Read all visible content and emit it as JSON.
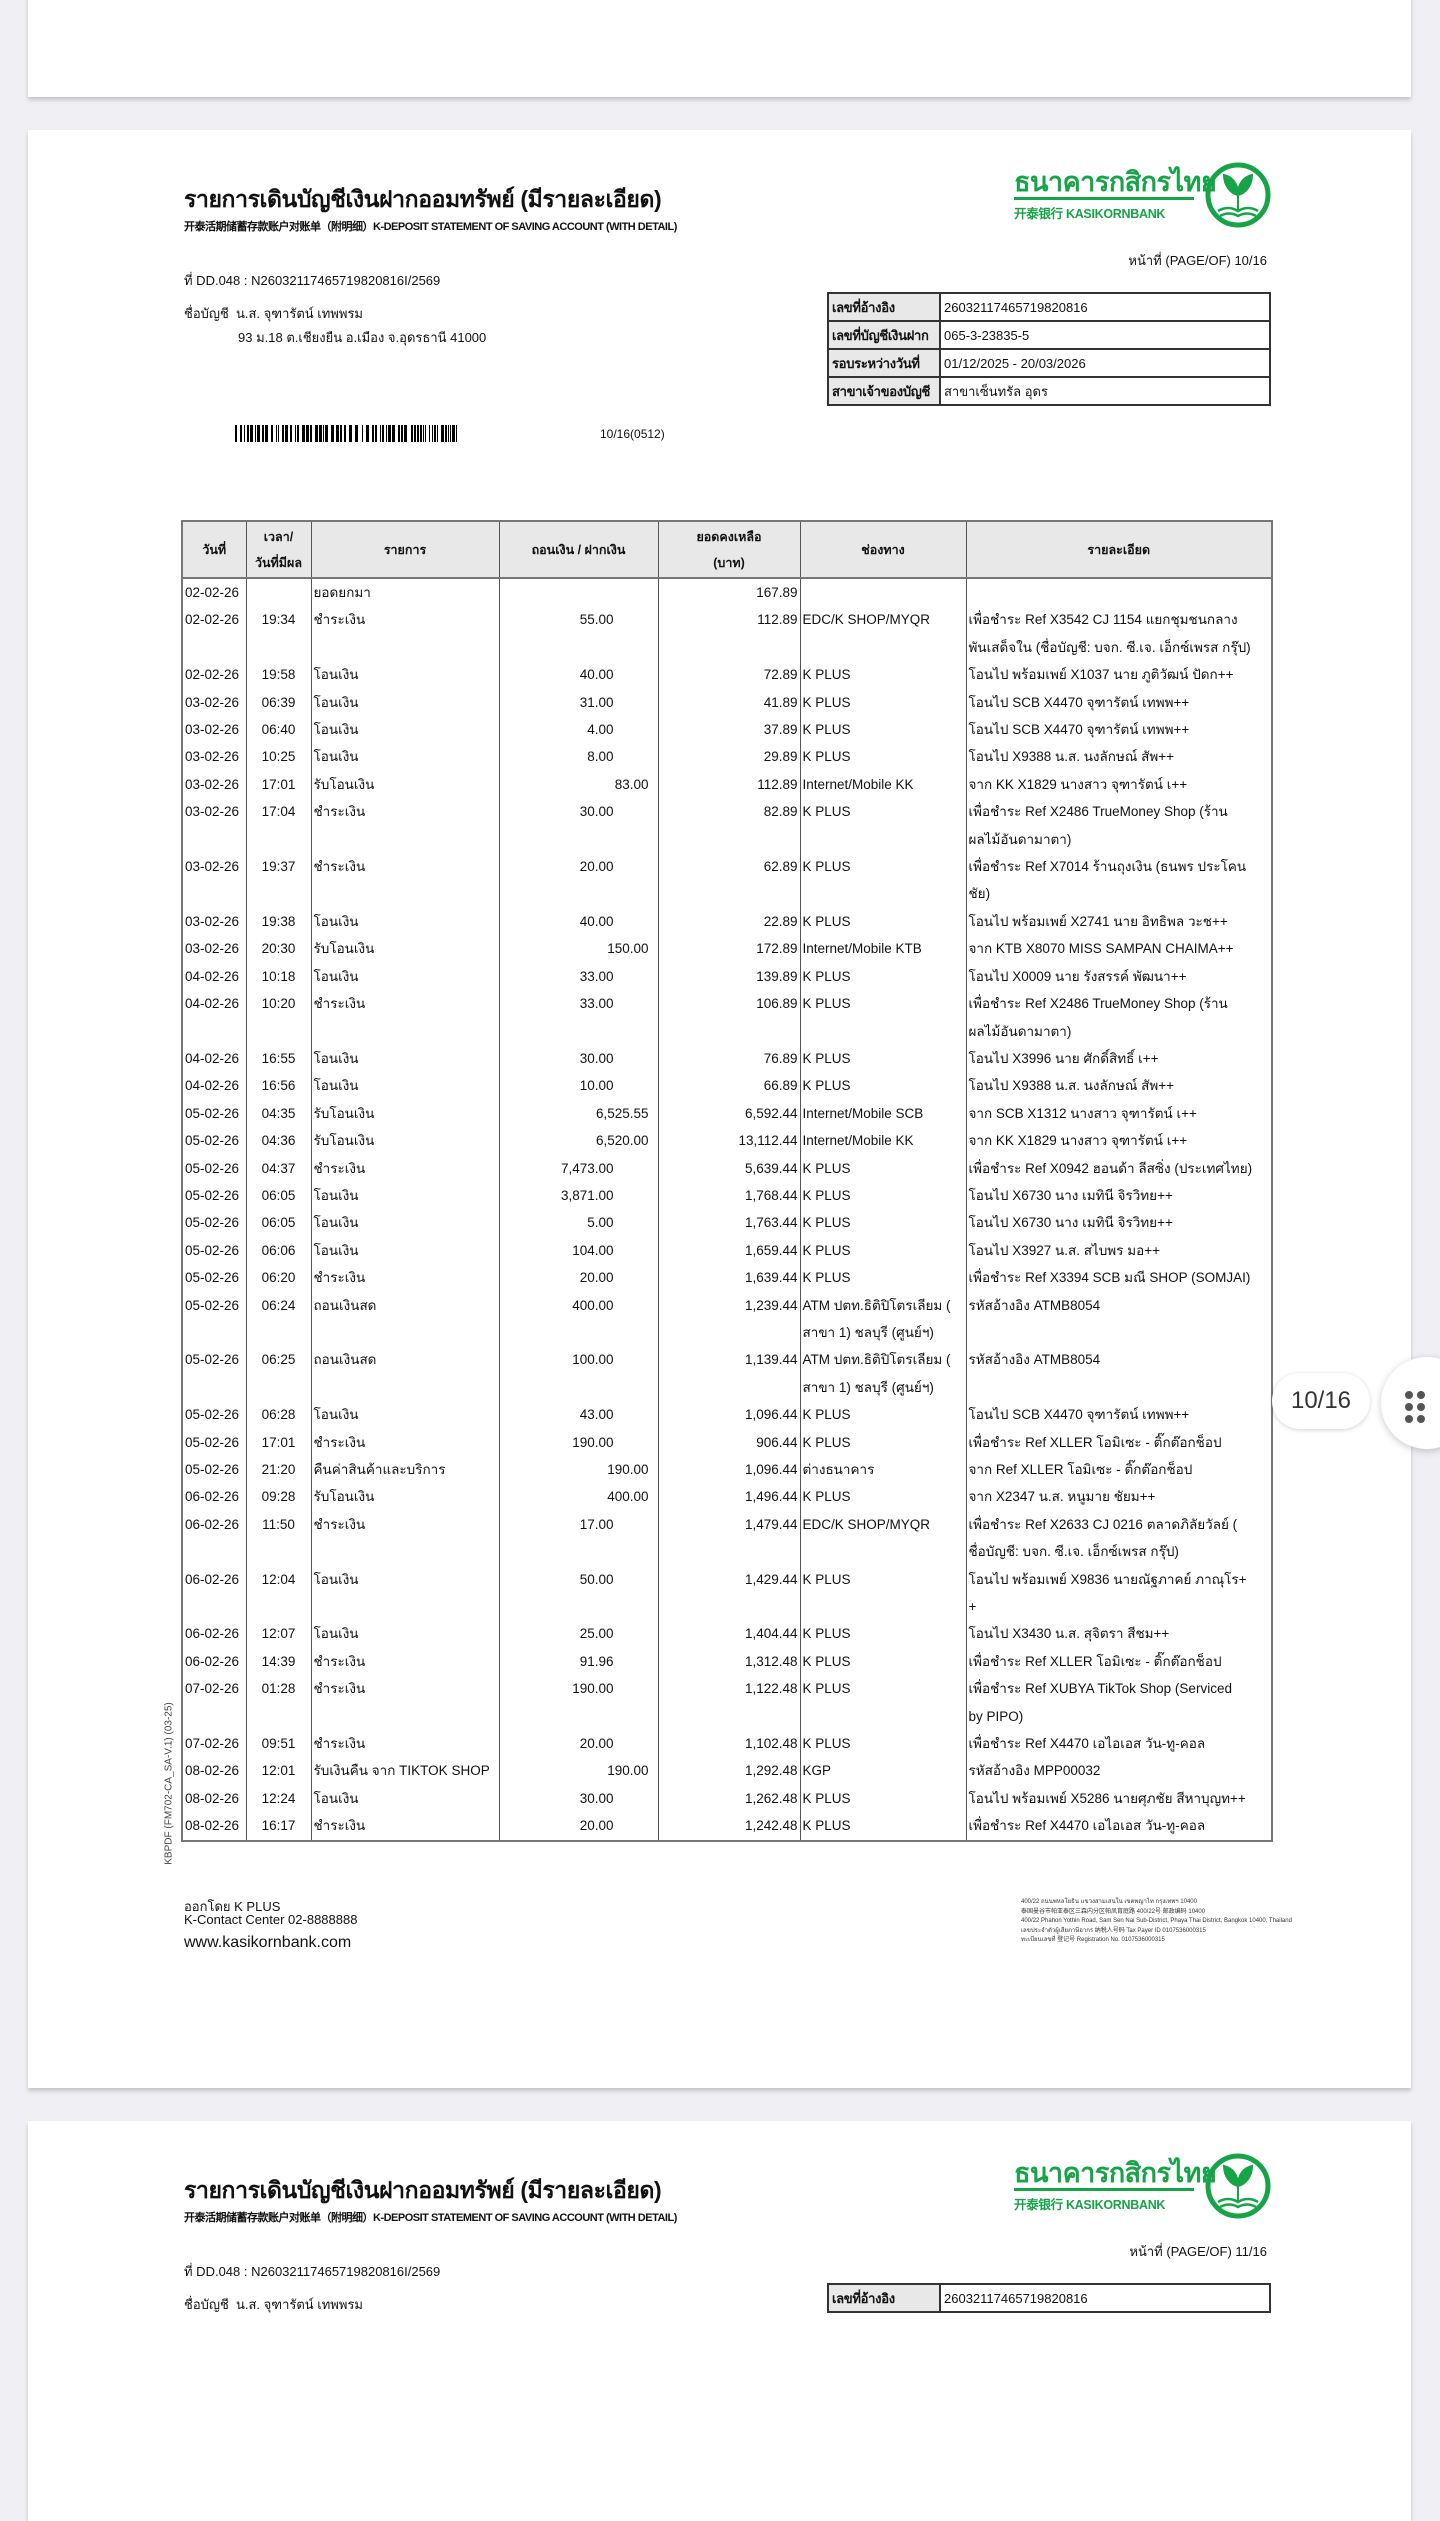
{
  "viewer": {
    "page_indicator": "10/16",
    "menu_icon": "grid-dots-icon"
  },
  "brand": {
    "logo_thai": "ธนาคารกสิกรไทย",
    "logo_en": "开泰银行 KASIKORNBANK",
    "green": "#17a347"
  },
  "statement": {
    "title": "รายการเดินบัญชีเงินฝากออมทรัพย์ (มีรายละเอียด)",
    "subtitle": "开泰活期储蓄存款账户对账单（附明细）K-DEPOSIT STATEMENT OF SAVING ACCOUNT (WITH DETAIL)",
    "page_no": "หน้าที่ (PAGE/OF) 10/16",
    "doc_no": "ที่ DD.048 : N26032117465719820816I/2569",
    "account_label": "ชื่อบัญชี",
    "account_name": "น.ส. จุฑารัตน์ เทพพรม",
    "address": "93 ม.18 ต.เชียงยืน อ.เมือง จ.อุดรธานี 41000",
    "info": [
      {
        "label": "เลขที่อ้างอิง",
        "value": "26032117465719820816"
      },
      {
        "label": "เลขที่บัญชีเงินฝาก",
        "value": "065-3-23835-5"
      },
      {
        "label": "รอบระหว่างวันที่",
        "value": "01/12/2025 - 20/03/2026"
      },
      {
        "label": "สาขาเจ้าของบัญชี",
        "value": "สาขาเซ็นทรัล อุดร"
      }
    ],
    "barcode_text": "10/16(0512)",
    "columns": [
      "วันที่",
      "เวลา/\nวันที่มีผล",
      "รายการ",
      "ถอนเงิน / ฝากเงิน",
      "ยอดคงเหลือ\n(บาท)",
      "ช่องทาง",
      "รายละเอียด"
    ],
    "rows": [
      {
        "date": "02-02-26",
        "time": "",
        "desc": "ยอดยกมา",
        "withdraw": "",
        "deposit": "",
        "balance": "167.89",
        "channel": "",
        "details": ""
      },
      {
        "date": "02-02-26",
        "time": "19:34",
        "desc": "ชำระเงิน",
        "withdraw": "55.00",
        "deposit": "",
        "balance": "112.89",
        "channel": "EDC/K SHOP/MYQR",
        "details": "เพื่อชำระ Ref X3542 CJ 1154 แยกชุมชนกลาง\nพันเสด็จใน (ชื่อบัญชี: บจก. ซี.เจ. เอ็กซ์เพรส กรุ๊ป)"
      },
      {
        "date": "02-02-26",
        "time": "19:58",
        "desc": "โอนเงิน",
        "withdraw": "40.00",
        "deposit": "",
        "balance": "72.89",
        "channel": "K PLUS",
        "details": "โอนไป พร้อมเพย์ X1037 นาย ภูติวัฒน์ ปัดก++"
      },
      {
        "date": "03-02-26",
        "time": "06:39",
        "desc": "โอนเงิน",
        "withdraw": "31.00",
        "deposit": "",
        "balance": "41.89",
        "channel": "K PLUS",
        "details": "โอนไป SCB X4470 จุฑารัตน์ เทพพ++"
      },
      {
        "date": "03-02-26",
        "time": "06:40",
        "desc": "โอนเงิน",
        "withdraw": "4.00",
        "deposit": "",
        "balance": "37.89",
        "channel": "K PLUS",
        "details": "โอนไป SCB X4470 จุฑารัตน์ เทพพ++"
      },
      {
        "date": "03-02-26",
        "time": "10:25",
        "desc": "โอนเงิน",
        "withdraw": "8.00",
        "deposit": "",
        "balance": "29.89",
        "channel": "K PLUS",
        "details": "โอนไป X9388 น.ส. นงลักษณ์ สัพ++"
      },
      {
        "date": "03-02-26",
        "time": "17:01",
        "desc": "รับโอนเงิน",
        "withdraw": "",
        "deposit": "83.00",
        "balance": "112.89",
        "channel": "Internet/Mobile KK",
        "details": "จาก KK X1829 นางสาว จุฑารัตน์ เ++"
      },
      {
        "date": "03-02-26",
        "time": "17:04",
        "desc": "ชำระเงิน",
        "withdraw": "30.00",
        "deposit": "",
        "balance": "82.89",
        "channel": "K PLUS",
        "details": "เพื่อชำระ Ref X2486 TrueMoney Shop (ร้าน\nผลไม้อันดามาตา)"
      },
      {
        "date": "03-02-26",
        "time": "19:37",
        "desc": "ชำระเงิน",
        "withdraw": "20.00",
        "deposit": "",
        "balance": "62.89",
        "channel": "K PLUS",
        "details": "เพื่อชำระ Ref X7014 ร้านถุงเงิน (ธนพร ประโคน\nชัย)"
      },
      {
        "date": "03-02-26",
        "time": "19:38",
        "desc": "โอนเงิน",
        "withdraw": "40.00",
        "deposit": "",
        "balance": "22.89",
        "channel": "K PLUS",
        "details": "โอนไป พร้อมเพย์ X2741 นาย อิทธิพล วะช++"
      },
      {
        "date": "03-02-26",
        "time": "20:30",
        "desc": "รับโอนเงิน",
        "withdraw": "",
        "deposit": "150.00",
        "balance": "172.89",
        "channel": "Internet/Mobile KTB",
        "details": "จาก KTB X8070 MISS SAMPAN CHAIMA++"
      },
      {
        "date": "04-02-26",
        "time": "10:18",
        "desc": "โอนเงิน",
        "withdraw": "33.00",
        "deposit": "",
        "balance": "139.89",
        "channel": "K PLUS",
        "details": "โอนไป X0009 นาย รังสรรค์ พัฒนา++"
      },
      {
        "date": "04-02-26",
        "time": "10:20",
        "desc": "ชำระเงิน",
        "withdraw": "33.00",
        "deposit": "",
        "balance": "106.89",
        "channel": "K PLUS",
        "details": "เพื่อชำระ Ref X2486 TrueMoney Shop (ร้าน\nผลไม้อันดามาตา)"
      },
      {
        "date": "04-02-26",
        "time": "16:55",
        "desc": "โอนเงิน",
        "withdraw": "30.00",
        "deposit": "",
        "balance": "76.89",
        "channel": "K PLUS",
        "details": "โอนไป X3996 นาย ศักดิ์สิทธิ์ เ++"
      },
      {
        "date": "04-02-26",
        "time": "16:56",
        "desc": "โอนเงิน",
        "withdraw": "10.00",
        "deposit": "",
        "balance": "66.89",
        "channel": "K PLUS",
        "details": "โอนไป X9388 น.ส. นงลักษณ์ สัพ++"
      },
      {
        "date": "05-02-26",
        "time": "04:35",
        "desc": "รับโอนเงิน",
        "withdraw": "",
        "deposit": "6,525.55",
        "balance": "6,592.44",
        "channel": "Internet/Mobile SCB",
        "details": "จาก SCB X1312 นางสาว จุฑารัตน์ เ++"
      },
      {
        "date": "05-02-26",
        "time": "04:36",
        "desc": "รับโอนเงิน",
        "withdraw": "",
        "deposit": "6,520.00",
        "balance": "13,112.44",
        "channel": "Internet/Mobile KK",
        "details": "จาก KK X1829 นางสาว จุฑารัตน์ เ++"
      },
      {
        "date": "05-02-26",
        "time": "04:37",
        "desc": "ชำระเงิน",
        "withdraw": "7,473.00",
        "deposit": "",
        "balance": "5,639.44",
        "channel": "K PLUS",
        "details": "เพื่อชำระ Ref X0942 ฮอนด้า ลีสซิ่ง (ประเทศไทย)"
      },
      {
        "date": "05-02-26",
        "time": "06:05",
        "desc": "โอนเงิน",
        "withdraw": "3,871.00",
        "deposit": "",
        "balance": "1,768.44",
        "channel": "K PLUS",
        "details": "โอนไป X6730 นาง เมทินี จิรวิทย++"
      },
      {
        "date": "05-02-26",
        "time": "06:05",
        "desc": "โอนเงิน",
        "withdraw": "5.00",
        "deposit": "",
        "balance": "1,763.44",
        "channel": "K PLUS",
        "details": "โอนไป X6730 นาง เมทินี จิรวิทย++"
      },
      {
        "date": "05-02-26",
        "time": "06:06",
        "desc": "โอนเงิน",
        "withdraw": "104.00",
        "deposit": "",
        "balance": "1,659.44",
        "channel": "K PLUS",
        "details": "โอนไป X3927 น.ส. สไบพร มอ++"
      },
      {
        "date": "05-02-26",
        "time": "06:20",
        "desc": "ชำระเงิน",
        "withdraw": "20.00",
        "deposit": "",
        "balance": "1,639.44",
        "channel": "K PLUS",
        "details": "เพื่อชำระ Ref X3394 SCB มณี SHOP (SOMJAI)"
      },
      {
        "date": "05-02-26",
        "time": "06:24",
        "desc": "ถอนเงินสด",
        "withdraw": "400.00",
        "deposit": "",
        "balance": "1,239.44",
        "channel": "ATM ปตท.ธิติปิโตรเลียม (\nสาขา 1) ชลบุรี (ศูนย์ฯ)",
        "details": "รหัสอ้างอิง ATMB8054"
      },
      {
        "date": "05-02-26",
        "time": "06:25",
        "desc": "ถอนเงินสด",
        "withdraw": "100.00",
        "deposit": "",
        "balance": "1,139.44",
        "channel": "ATM ปตท.ธิติปิโตรเลียม (\nสาขา 1) ชลบุรี (ศูนย์ฯ)",
        "details": "รหัสอ้างอิง ATMB8054"
      },
      {
        "date": "05-02-26",
        "time": "06:28",
        "desc": "โอนเงิน",
        "withdraw": "43.00",
        "deposit": "",
        "balance": "1,096.44",
        "channel": "K PLUS",
        "details": "โอนไป SCB X4470 จุฑารัตน์ เทพพ++"
      },
      {
        "date": "05-02-26",
        "time": "17:01",
        "desc": "ชำระเงิน",
        "withdraw": "190.00",
        "deposit": "",
        "balance": "906.44",
        "channel": "K PLUS",
        "details": "เพื่อชำระ Ref XLLER โอมิเซะ - ติ๊กต๊อกช็อป"
      },
      {
        "date": "05-02-26",
        "time": "21:20",
        "desc": "คืนค่าสินค้าและบริการ",
        "withdraw": "",
        "deposit": "190.00",
        "balance": "1,096.44",
        "channel": "ต่างธนาคาร",
        "details": "จาก Ref XLLER โอมิเซะ - ติ๊กต๊อกช็อป"
      },
      {
        "date": "06-02-26",
        "time": "09:28",
        "desc": "รับโอนเงิน",
        "withdraw": "",
        "deposit": "400.00",
        "balance": "1,496.44",
        "channel": "K PLUS",
        "details": "จาก X2347 น.ส. หนูมาย ชัยม++"
      },
      {
        "date": "06-02-26",
        "time": "11:50",
        "desc": "ชำระเงิน",
        "withdraw": "17.00",
        "deposit": "",
        "balance": "1,479.44",
        "channel": "EDC/K SHOP/MYQR",
        "details": "เพื่อชำระ Ref X2633 CJ 0216 ตลาดภิลัยวัลย์ (\nชื่อบัญชี: บจก. ซี.เจ. เอ็กซ์เพรส กรุ๊ป)"
      },
      {
        "date": "06-02-26",
        "time": "12:04",
        "desc": "โอนเงิน",
        "withdraw": "50.00",
        "deposit": "",
        "balance": "1,429.44",
        "channel": "K PLUS",
        "details": "โอนไป พร้อมเพย์ X9836 นายณัฐภาคย์ ภาณุโร+\n+"
      },
      {
        "date": "06-02-26",
        "time": "12:07",
        "desc": "โอนเงิน",
        "withdraw": "25.00",
        "deposit": "",
        "balance": "1,404.44",
        "channel": "K PLUS",
        "details": "โอนไป X3430 น.ส. สุจิตรา สีชม++"
      },
      {
        "date": "06-02-26",
        "time": "14:39",
        "desc": "ชำระเงิน",
        "withdraw": "91.96",
        "deposit": "",
        "balance": "1,312.48",
        "channel": "K PLUS",
        "details": "เพื่อชำระ Ref XLLER โอมิเซะ - ติ๊กต๊อกช็อป"
      },
      {
        "date": "07-02-26",
        "time": "01:28",
        "desc": "ชำระเงิน",
        "withdraw": "190.00",
        "deposit": "",
        "balance": "1,122.48",
        "channel": "K PLUS",
        "details": "เพื่อชำระ Ref XUBYA TikTok Shop (Serviced\nby PIPO)"
      },
      {
        "date": "07-02-26",
        "time": "09:51",
        "desc": "ชำระเงิน",
        "withdraw": "20.00",
        "deposit": "",
        "balance": "1,102.48",
        "channel": "K PLUS",
        "details": "เพื่อชำระ Ref X4470 เอไอเอส วัน-ทู-คอล"
      },
      {
        "date": "08-02-26",
        "time": "12:01",
        "desc": "รับเงินคืน จาก TIKTOK SHOP",
        "withdraw": "",
        "deposit": "190.00",
        "balance": "1,292.48",
        "channel": "KGP",
        "details": "รหัสอ้างอิง MPP00032"
      },
      {
        "date": "08-02-26",
        "time": "12:24",
        "desc": "โอนเงิน",
        "withdraw": "30.00",
        "deposit": "",
        "balance": "1,262.48",
        "channel": "K PLUS",
        "details": "โอนไป พร้อมเพย์ X5286 นายศุภชัย สีหาบุญท++"
      },
      {
        "date": "08-02-26",
        "time": "16:17",
        "desc": "ชำระเงิน",
        "withdraw": "20.00",
        "deposit": "",
        "balance": "1,242.48",
        "channel": "K PLUS",
        "details": "เพื่อชำระ Ref X4470 เอไอเอส วัน-ทู-คอล"
      }
    ],
    "form_code": "KBPDF (FM702-CA_SA-V.1) (03-25)",
    "footer": {
      "issued_by": "ออกโดย K PLUS",
      "contact": "K-Contact Center 02-8888888",
      "website": "www.kasikornbank.com",
      "address_lines": [
        "400/22 ถนนพหลโยธิน แขวงสามเสนใน เขตพญาไท กรุงเทพฯ 10400",
        "泰国曼谷市帕亚泰区三森内分区帕凤育庭路 400/22号 邮政编码 10400",
        "400/22 Phahon Yothin Road, Sam Sen Nai Sub-District, Phaya Thai District, Bangkok 10400, Thailand",
        "เลขประจำตัวผู้เสียภาษีอากร 纳税人号码 Tax Payer ID 0107536000315",
        "ทะเบียนเลขที่ 登记号 Registration No. 0107536000315"
      ]
    }
  },
  "next_page": {
    "title": "รายการเดินบัญชีเงินฝากออมทรัพย์ (มีรายละเอียด)",
    "subtitle": "开泰活期储蓄存款账户对账单（附明细）K-DEPOSIT STATEMENT OF SAVING ACCOUNT (WITH DETAIL)",
    "page_no": "หน้าที่ (PAGE/OF) 11/16",
    "doc_no": "ที่ DD.048 : N26032117465719820816I/2569",
    "account_label": "ชื่อบัญชี",
    "account_name": "น.ส. จุฑารัตน์ เทพพรม",
    "info_first": {
      "label": "เลขที่อ้างอิง",
      "value": "26032117465719820816"
    }
  }
}
